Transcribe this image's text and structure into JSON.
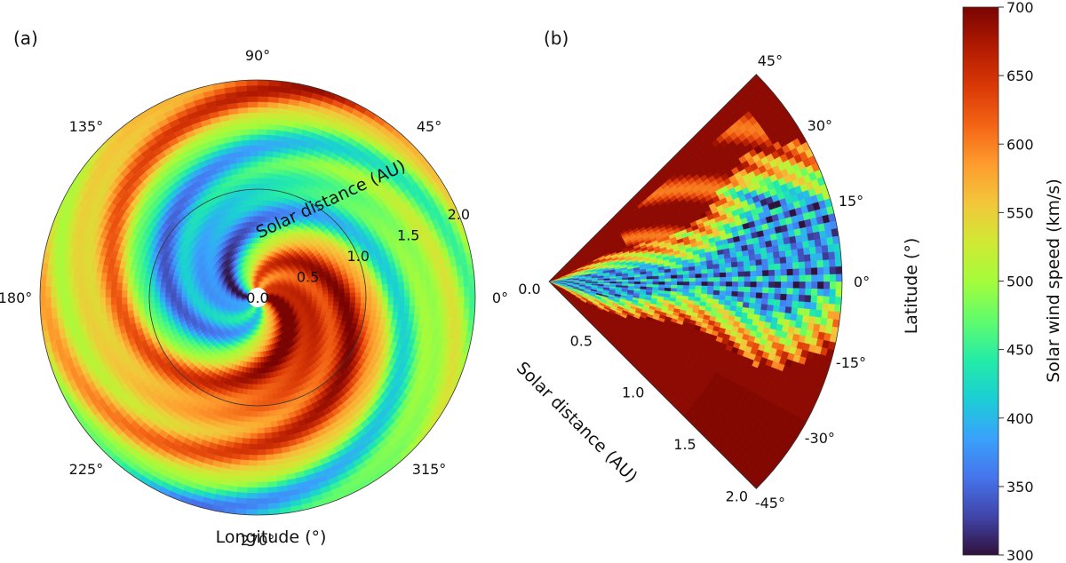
{
  "chart_data": [
    {
      "type": "heatmap",
      "panel_label": "(a)",
      "projection": "polar",
      "angular_axis": {
        "label": "Longitude (°)",
        "ticks": [
          "0°",
          "45°",
          "90°",
          "135°",
          "180°",
          "225°",
          "270°",
          "315°"
        ],
        "tick_values": [
          0,
          45,
          90,
          135,
          180,
          225,
          270,
          315
        ]
      },
      "radial_axis": {
        "label": "Solar distance (AU)",
        "ticks": [
          "0.0",
          "0.5",
          "1.0",
          "1.5",
          "2.0"
        ],
        "tick_values": [
          0.0,
          0.5,
          1.0,
          1.5,
          2.0
        ],
        "range": [
          0,
          2.0
        ],
        "reference_circle": 1.0
      },
      "structure": "Parker-spiral pattern of alternating fast and slow solar wind streams",
      "value_range": [
        300,
        700
      ]
    },
    {
      "type": "heatmap",
      "panel_label": "(b)",
      "projection": "meridional wedge",
      "angular_axis": {
        "label": "Latitude (°)",
        "ticks": [
          "45°",
          "30°",
          "15°",
          "0°",
          "-15°",
          "-30°",
          "-45°"
        ],
        "tick_values": [
          45,
          30,
          15,
          0,
          -15,
          -30,
          -45
        ],
        "range": [
          -45,
          45
        ]
      },
      "radial_axis": {
        "label": "Solar distance (AU)",
        "ticks": [
          "0.0",
          "0.5",
          "1.0",
          "1.5",
          "2.0"
        ],
        "tick_values": [
          0.0,
          0.5,
          1.0,
          1.5,
          2.0
        ],
        "range": [
          0,
          2.0
        ]
      },
      "value_range": [
        300,
        700
      ]
    }
  ],
  "colorbar": {
    "label": "Solar wind speed (km/s)",
    "ticks": [
      "300",
      "350",
      "400",
      "450",
      "500",
      "550",
      "600",
      "650",
      "700"
    ],
    "tick_values": [
      300,
      350,
      400,
      450,
      500,
      550,
      600,
      650,
      700
    ],
    "range": [
      300,
      700
    ],
    "colormap": [
      "#30123b",
      "#4145ab",
      "#4675ed",
      "#39a2fc",
      "#1bcfd4",
      "#24eca6",
      "#61fc6c",
      "#a4fc3b",
      "#d1e834",
      "#f3c63a",
      "#fe9b2d",
      "#f36315",
      "#d93806",
      "#b11901",
      "#7a0402"
    ]
  }
}
